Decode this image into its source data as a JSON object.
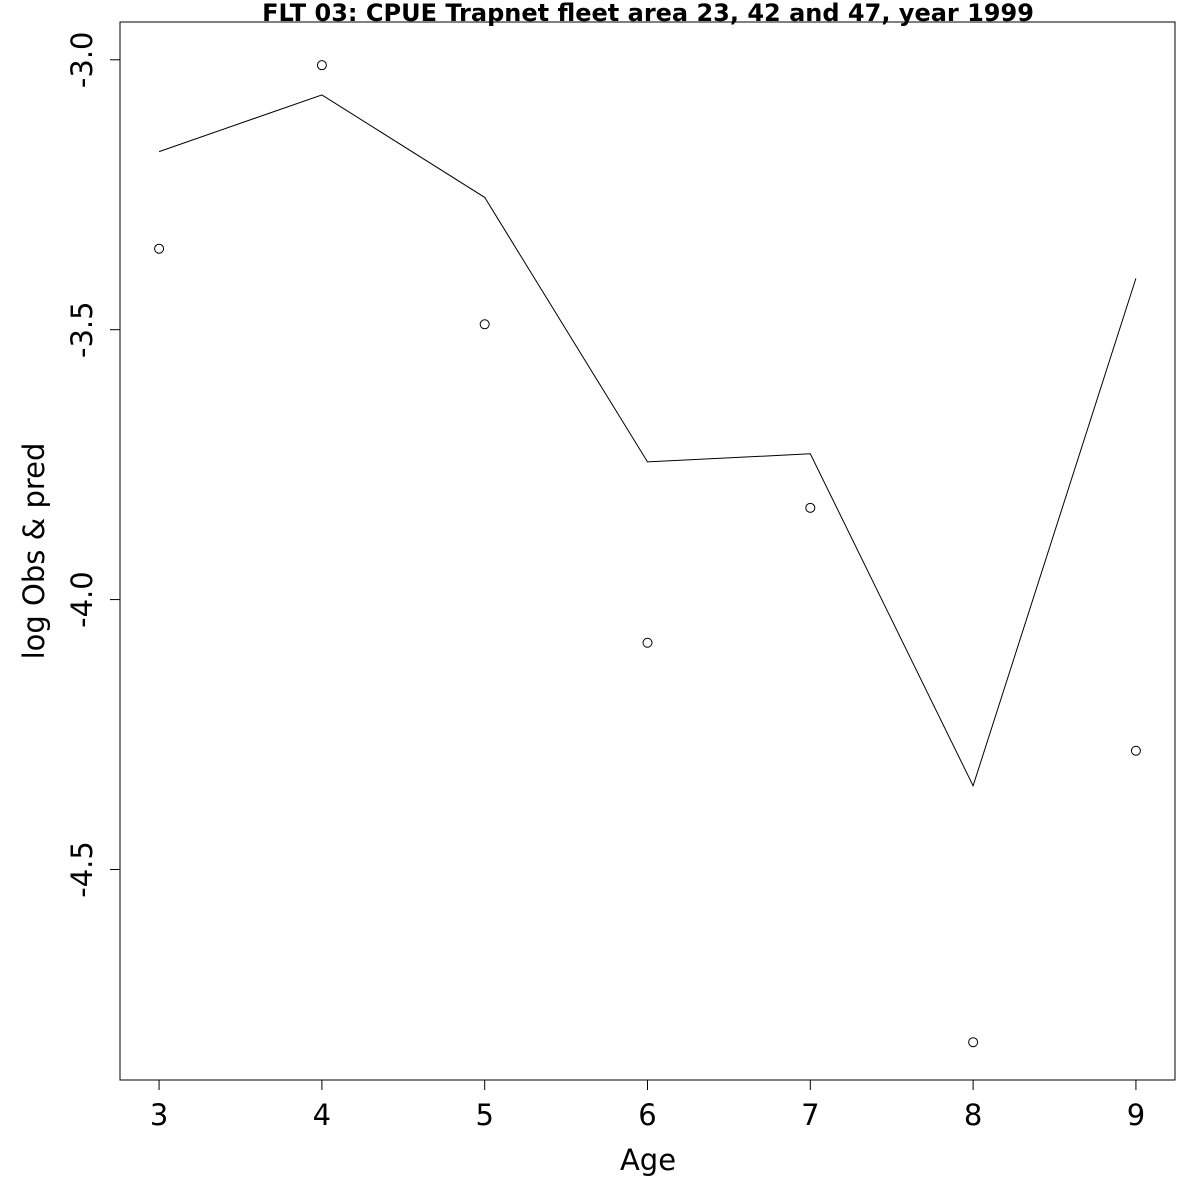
{
  "chart_data": {
    "type": "line",
    "title": "FLT 03: CPUE Trapnet fleet area 23, 42 and 47, year 1999",
    "xlabel": "Age",
    "ylabel": "log Obs & pred",
    "x": [
      3,
      4,
      5,
      6,
      7,
      8,
      9
    ],
    "x_ticks": [
      "3",
      "4",
      "5",
      "6",
      "7",
      "8",
      "9"
    ],
    "y_ticks": [
      "-3.0",
      "-3.5",
      "-4.0",
      "-4.5"
    ],
    "y_tick_values": [
      -3.0,
      -3.5,
      -4.0,
      -4.5
    ],
    "xlim": [
      2.76,
      9.24
    ],
    "ylim": [
      -4.89,
      -2.93
    ],
    "grid": false,
    "series": [
      {
        "style": "points",
        "marker": "open-circle",
        "values": [
          -3.35,
          -3.01,
          -3.49,
          -4.08,
          -3.83,
          -4.82,
          -4.28
        ]
      },
      {
        "style": "line",
        "values": [
          -3.17,
          -3.065,
          -3.255,
          -3.745,
          -3.73,
          -4.345,
          -3.405
        ]
      }
    ]
  }
}
